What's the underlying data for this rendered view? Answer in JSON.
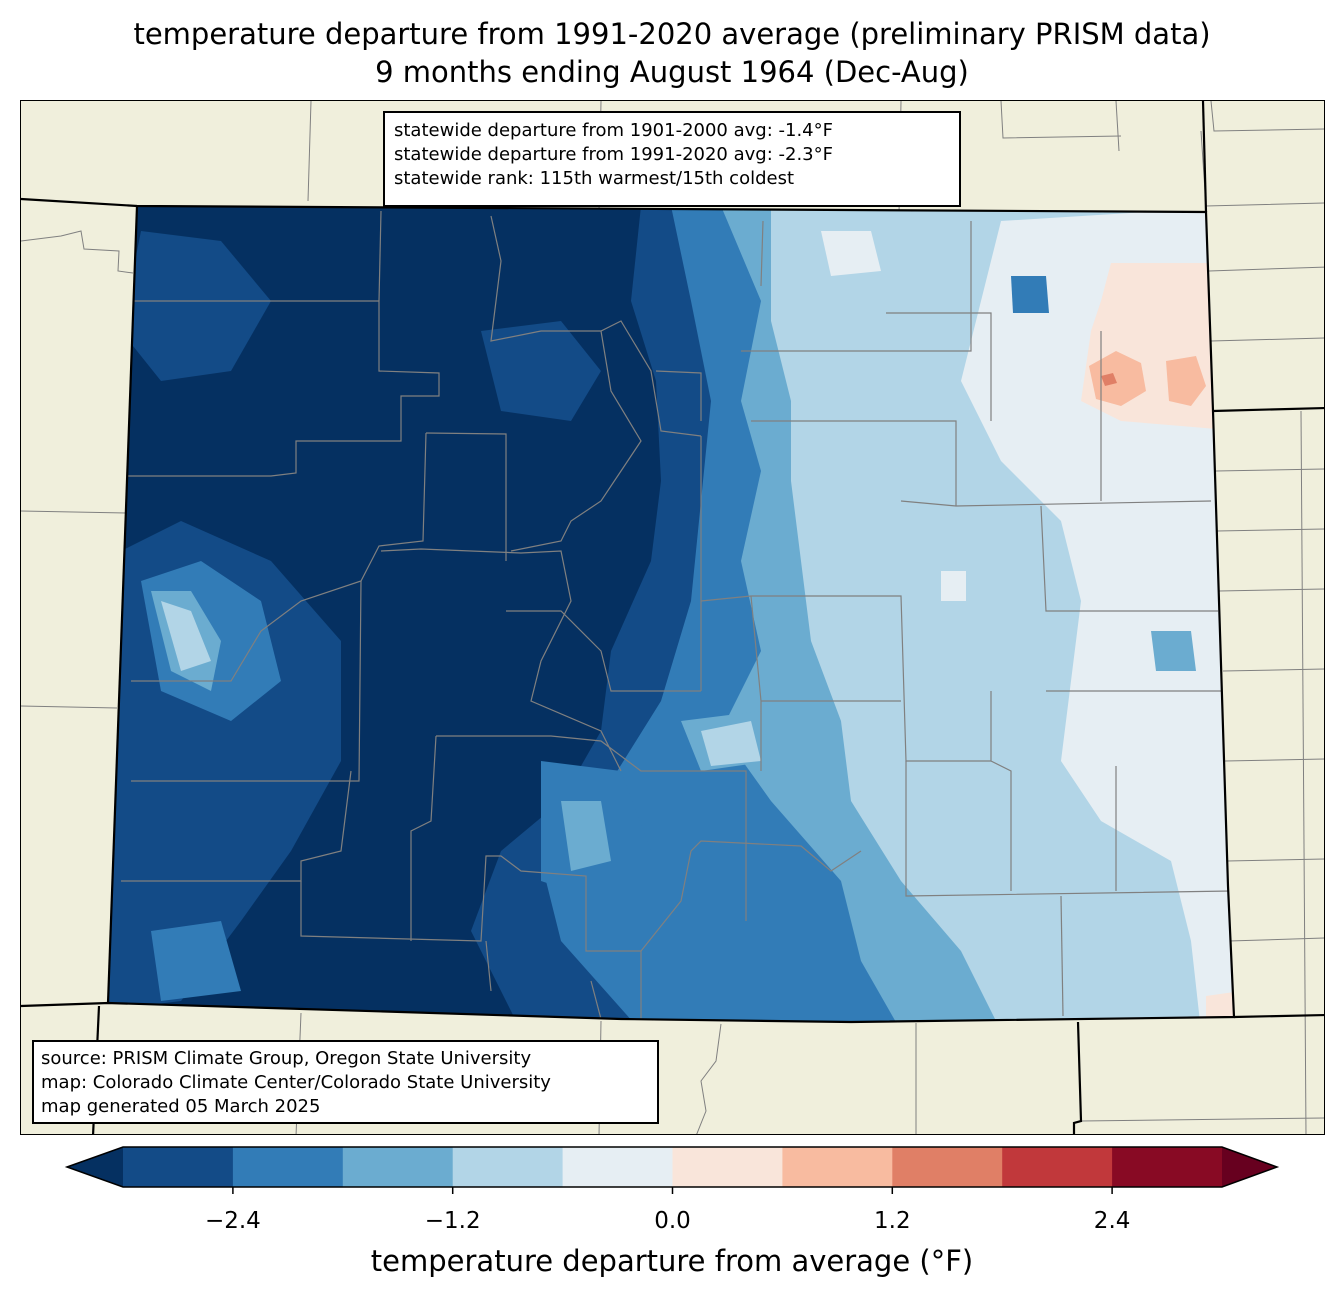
{
  "title_line1": "temperature departure from 1991-2020 average (preliminary PRISM data)",
  "title_line2": "9 months ending August 1964 (Dec-Aug)",
  "stats": {
    "line1": "statewide departure from 1901-2000 avg: -1.4°F",
    "line2": "statewide departure from 1991-2020 avg: -2.3°F",
    "line3": "statewide rank: 115th warmest/15th coldest"
  },
  "source": {
    "line1": "source: PRISM Climate Group, Oregon State University",
    "line2": "map: Colorado Climate Center/Colorado State University",
    "line3": "map generated 05 March 2025"
  },
  "colorbar": {
    "label": "temperature departure from average (°F)",
    "ticks": [
      "−2.4",
      "−1.2",
      "0.0",
      "1.2",
      "2.4"
    ],
    "tick_values": [
      -2.4,
      -1.2,
      0.0,
      1.2,
      2.4
    ],
    "min": -3.0,
    "max": 3.0,
    "step": 0.6,
    "colors": [
      "#053061",
      "#134b87",
      "#327cb7",
      "#6bacd0",
      "#b2d5e7",
      "#e6eef3",
      "#f9e5da",
      "#f8bba0",
      "#e07f66",
      "#c1383b",
      "#880a24",
      "#67001f"
    ]
  },
  "colors": {
    "land_background": "#f0efdc",
    "county_lines": "#808080",
    "state_lines": "#000000"
  }
}
